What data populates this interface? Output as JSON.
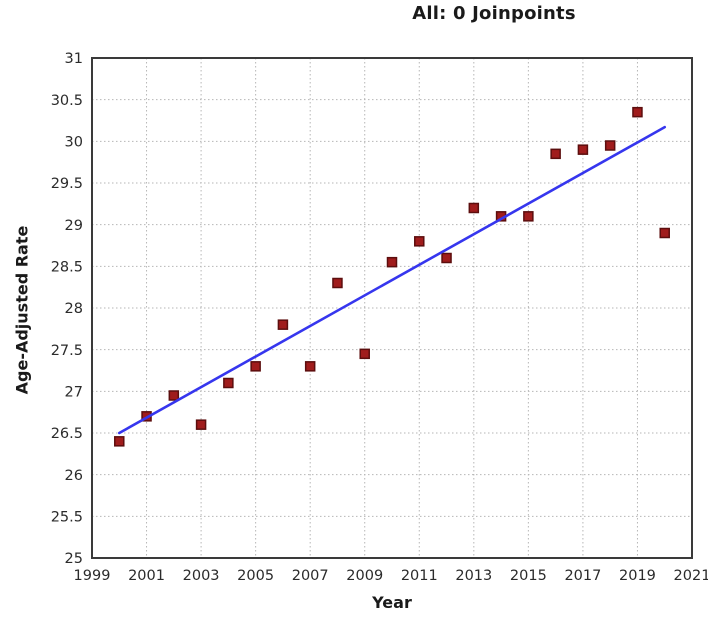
{
  "title": "All: 0 Joinpoints",
  "chart_data": {
    "type": "scatter",
    "title": "All: 0 Joinpoints",
    "xlabel": "Year",
    "ylabel": "Age-Adjusted Rate",
    "xlim": [
      1999,
      2021
    ],
    "ylim": [
      25,
      31
    ],
    "x_tick_labels": [
      "1999",
      "2001",
      "2003",
      "2005",
      "2007",
      "2009",
      "2011",
      "2013",
      "2015",
      "2017",
      "2019",
      "2021"
    ],
    "y_tick_labels": [
      "25",
      "25.5",
      "26",
      "26.5",
      "27",
      "27.5",
      "28",
      "28.5",
      "29",
      "29.5",
      "30",
      "30.5",
      "31"
    ],
    "grid": true,
    "legend": "none",
    "series": [
      {
        "name": "Observed age-adjusted rate",
        "type": "scatter",
        "marker": "square",
        "x": [
          2000,
          2001,
          2002,
          2003,
          2004,
          2005,
          2006,
          2007,
          2008,
          2009,
          2010,
          2011,
          2012,
          2013,
          2014,
          2015,
          2016,
          2017,
          2018,
          2019,
          2020
        ],
        "y": [
          26.4,
          26.7,
          26.95,
          26.6,
          27.1,
          27.3,
          27.8,
          27.3,
          28.3,
          27.45,
          28.55,
          28.8,
          28.6,
          29.2,
          29.1,
          29.1,
          29.85,
          29.9,
          29.95,
          30.35,
          28.9
        ]
      },
      {
        "name": "Joinpoint fit (0 joinpoints)",
        "type": "line",
        "x": [
          2000,
          2020
        ],
        "y": [
          26.5,
          30.17
        ]
      }
    ],
    "colors": {
      "point_fill": "#a01c1c",
      "point_stroke": "#5c0e0e",
      "trend_line": "#3636ee",
      "grid_line": "#b6b6b6",
      "plot_border": "#3a3a3a",
      "tick_text": "#2b2b2b",
      "title_text": "#1a1a1a"
    }
  }
}
